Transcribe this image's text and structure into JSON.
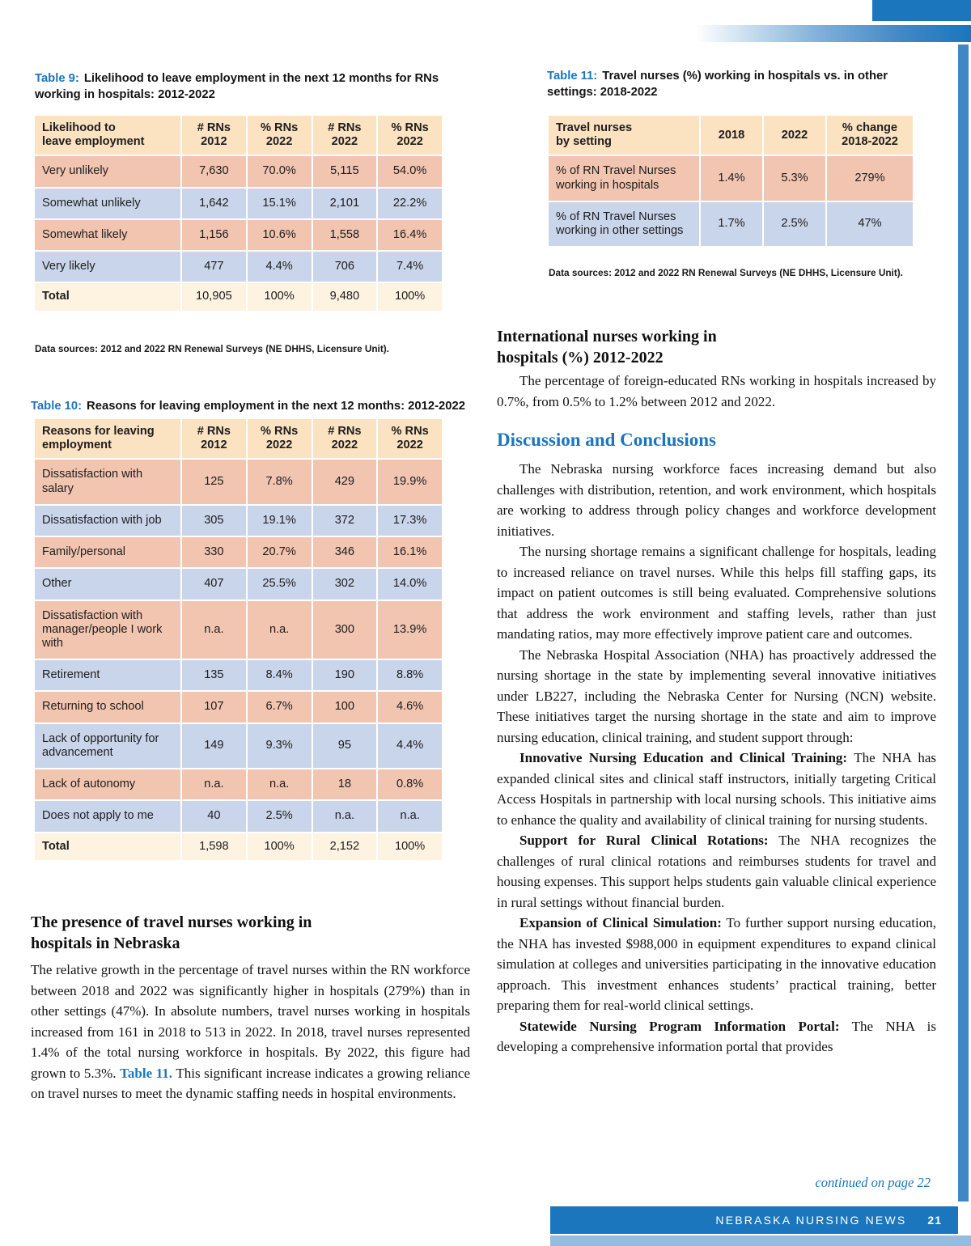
{
  "colors": {
    "accent_blue": "#1b76bd",
    "side_bar_blue": "#4287c5",
    "footer_light_blue": "#93bce0",
    "header_peach": "#fbe2c1",
    "row_salmon": "#f1c5b0",
    "row_blue": "#c9d5ea",
    "total_cream": "#fdf3e0"
  },
  "table9": {
    "label": "Table 9:",
    "caption": "Likelihood to leave employment in the next 12 months for RNs working in hospitals: 2012-2022",
    "headers": [
      "Likelihood to\nleave employment",
      "# RNs\n2012",
      "% RNs\n2022",
      "# RNs\n2022",
      "% RNs\n2022"
    ],
    "rows": [
      [
        "Very unlikely",
        "7,630",
        "70.0%",
        "5,115",
        "54.0%"
      ],
      [
        "Somewhat unlikely",
        "1,642",
        "15.1%",
        "2,101",
        "22.2%"
      ],
      [
        "Somewhat likely",
        "1,156",
        "10.6%",
        "1,558",
        "16.4%"
      ],
      [
        "Very likely",
        "477",
        "4.4%",
        "706",
        "7.4%"
      ]
    ],
    "total": [
      "Total",
      "10,905",
      "100%",
      "9,480",
      "100%"
    ],
    "source": "Data sources: 2012 and 2022 RN Renewal Surveys (NE DHHS, Licensure Unit)."
  },
  "table10": {
    "label": "Table 10:",
    "caption": "Reasons for leaving employment in the next 12 months: 2012-2022",
    "headers": [
      "Reasons for leaving\nemployment",
      "# RNs\n2012",
      "% RNs\n2022",
      "# RNs\n2022",
      "% RNs\n2022"
    ],
    "rows": [
      [
        "Dissatisfaction with salary",
        "125",
        "7.8%",
        "429",
        "19.9%"
      ],
      [
        "Dissatisfaction with job",
        "305",
        "19.1%",
        "372",
        "17.3%"
      ],
      [
        "Family/personal",
        "330",
        "20.7%",
        "346",
        "16.1%"
      ],
      [
        "Other",
        "407",
        "25.5%",
        "302",
        "14.0%"
      ],
      [
        "Dissatisfaction with manager/people I work with",
        "n.a.",
        "n.a.",
        "300",
        "13.9%"
      ],
      [
        "Retirement",
        "135",
        "8.4%",
        "190",
        "8.8%"
      ],
      [
        "Returning to school",
        "107",
        "6.7%",
        "100",
        "4.6%"
      ],
      [
        "Lack of opportunity for advancement",
        "149",
        "9.3%",
        "95",
        "4.4%"
      ],
      [
        "Lack of autonomy",
        "n.a.",
        "n.a.",
        "18",
        "0.8%"
      ],
      [
        "Does not apply to me",
        "40",
        "2.5%",
        "n.a.",
        "n.a."
      ]
    ],
    "total": [
      "Total",
      "1,598",
      "100%",
      "2,152",
      "100%"
    ]
  },
  "table11": {
    "label": "Table 11:",
    "caption": "Travel nurses (%) working in hospitals vs. in other settings: 2018-2022",
    "headers": [
      "Travel nurses\nby setting",
      "2018",
      "2022",
      "% change\n2018-2022"
    ],
    "rows": [
      [
        "% of RN Travel Nurses working in hospitals",
        "1.4%",
        "5.3%",
        "279%"
      ],
      [
        "% of RN Travel Nurses working in other settings",
        "1.7%",
        "2.5%",
        "47%"
      ]
    ],
    "source": "Data sources: 2012 and 2022 RN Renewal Surveys (NE DHHS, Licensure Unit)."
  },
  "left_section": {
    "heading": "The presence of travel nurses working in\nhospitals in Nebraska",
    "paragraphs": [
      {
        "indent": false,
        "segments": [
          {
            "text": "The relative growth in the percentage of travel nurses within the RN workforce between 2018 and 2022 was significantly higher in hospitals (279%) than in other settings (47%). In absolute numbers, travel nurses working in hospitals increased from 161 in 2018 to 513 in 2022. In 2018, travel nurses represented 1.4% of the total nursing workforce in hospitals. By 2022, this figure had grown to 5.3%. "
          },
          {
            "text": "Table 11.",
            "style": "ref"
          },
          {
            "text": " This significant increase indicates a growing reliance on travel nurses to meet the dynamic staffing needs in hospital environments."
          }
        ]
      }
    ]
  },
  "right_section": {
    "intl_heading": "International nurses working in\nhospitals (%) 2012-2022",
    "intl_paragraphs": [
      {
        "indent": true,
        "segments": [
          {
            "text": "The percentage of foreign-educated RNs working in hospitals increased by 0.7%, from 0.5% to 1.2% between 2012 and 2022."
          }
        ]
      }
    ],
    "discussion_heading": "Discussion and Conclusions",
    "discussion_paragraphs": [
      {
        "indent": true,
        "segments": [
          {
            "text": "The Nebraska nursing workforce faces increasing demand but also challenges with distribution, retention, and work environment, which hospitals are working to address through policy changes and workforce development initiatives."
          }
        ]
      },
      {
        "indent": true,
        "segments": [
          {
            "text": "The nursing shortage remains a significant challenge for hospitals, leading to increased reliance on travel nurses. While this helps fill staffing gaps, its impact on patient outcomes is still being evaluated. Comprehensive solutions that address the work environment and staffing levels, rather than just mandating ratios, may more effectively improve patient care and outcomes."
          }
        ]
      },
      {
        "indent": true,
        "segments": [
          {
            "text": "The Nebraska Hospital Association (NHA) has proactively addressed the nursing shortage in the state by implementing several innovative initiatives under LB227, including the Nebraska Center for Nursing (NCN) website. These initiatives target the nursing shortage in the state and aim to improve nursing education, clinical training, and student support through:"
          }
        ]
      },
      {
        "indent": true,
        "segments": [
          {
            "text": "Innovative Nursing Education and Clinical Training:",
            "style": "bold"
          },
          {
            "text": " The NHA has expanded clinical sites and clinical staff instructors, initially targeting Critical Access Hospitals in partnership with local nursing schools. This initiative aims to enhance the quality and availability of clinical training for nursing students."
          }
        ]
      },
      {
        "indent": true,
        "segments": [
          {
            "text": "Support for Rural Clinical Rotations:",
            "style": "bold"
          },
          {
            "text": " The NHA recognizes the challenges of rural clinical rotations and reimburses students for travel and housing expenses. This support helps students gain valuable clinical experience in rural settings without financial burden."
          }
        ]
      },
      {
        "indent": true,
        "segments": [
          {
            "text": "Expansion of Clinical Simulation:",
            "style": "bold"
          },
          {
            "text": " To further support nursing education, the NHA has invested $988,000 in equipment expenditures to expand clinical simulation at colleges and universities participating in the innovative education approach. This investment enhances students’ practical training, better preparing them for real-world clinical settings."
          }
        ]
      },
      {
        "indent": true,
        "segments": [
          {
            "text": "Statewide Nursing Program Information Portal:",
            "style": "bold"
          },
          {
            "text": " The NHA is developing a comprehensive information portal that provides"
          }
        ]
      }
    ]
  },
  "footer": {
    "continued": "continued on page 22",
    "publication": "NEBRASKA NURSING NEWS",
    "page_number": "21"
  }
}
